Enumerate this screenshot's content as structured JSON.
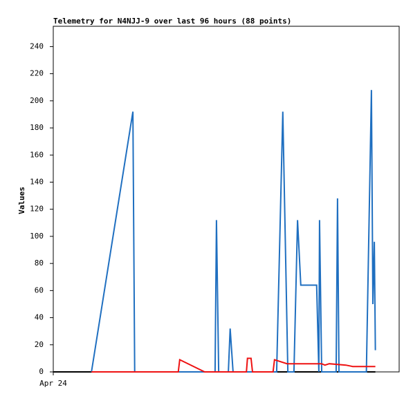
{
  "chart_data": {
    "type": "line",
    "title": "Telemetry for N4NJJ-9 over last 96 hours (88 points)",
    "y_label": "Values",
    "xlim": [
      0,
      96
    ],
    "xticks": [
      {
        "value": 0,
        "label": "Apr 24"
      }
    ],
    "ylim": [
      0,
      255
    ],
    "yticks": [
      0,
      20,
      40,
      60,
      80,
      100,
      120,
      140,
      160,
      180,
      200,
      220,
      240
    ],
    "grid": false,
    "series": [
      {
        "name": "series-black",
        "color": "#000000",
        "x": [
          0,
          89.4
        ],
        "values": [
          0,
          0
        ]
      },
      {
        "name": "series-blue",
        "color": "#1f6fc0",
        "x": [
          10.6,
          22.1,
          22.6,
          44.9,
          45.3,
          45.9,
          48.6,
          49.1,
          49.9,
          62.0,
          63.7,
          65.1,
          66.8,
          67.8,
          68.7,
          73.1,
          73.7,
          73.9,
          74.5,
          78.5,
          78.9,
          79.3,
          86.9,
          88.3,
          88.7,
          89.1,
          89.4
        ],
        "values": [
          0,
          192,
          0,
          0,
          112,
          0,
          0,
          32,
          0,
          0,
          192,
          0,
          0,
          112,
          64,
          64,
          0,
          112,
          0,
          0,
          128,
          0,
          0,
          208,
          50,
          96,
          16
        ]
      },
      {
        "name": "series-red",
        "color": "#ee1111",
        "x": [
          10.6,
          34.7,
          35.1,
          42.0,
          53.6,
          53.9,
          54.9,
          55.3,
          61.0,
          61.4,
          64.9,
          74.5,
          75.4,
          76.6,
          81.2,
          83.1,
          89.4
        ],
        "values": [
          0,
          0,
          9,
          0,
          0,
          10,
          10,
          0,
          0,
          9,
          6,
          6,
          5,
          6,
          5,
          4,
          4
        ]
      }
    ]
  }
}
